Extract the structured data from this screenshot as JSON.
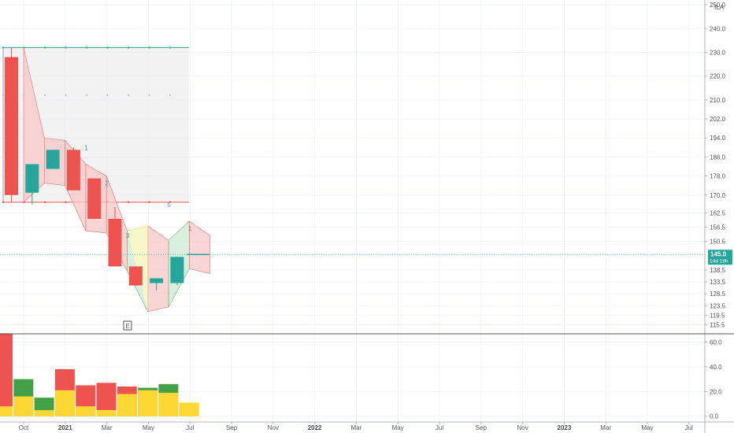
{
  "chart_data": {
    "type": "candlestick",
    "symbol_label": "ILA",
    "price_axis": {
      "ticks": [
        "250.0",
        "240.0",
        "230.0",
        "220.0",
        "210.0",
        "202.0",
        "194.0",
        "186.0",
        "178.0",
        "170.0",
        "162.5",
        "156.5",
        "150.5",
        "145.0",
        "138.5",
        "133.5",
        "128.5",
        "123.5",
        "119.5",
        "115.5"
      ],
      "ylim": [
        112,
        252
      ]
    },
    "volume_axis": {
      "ticks": [
        "60.0",
        "40.0",
        "20.0",
        "0.0"
      ],
      "ylim": [
        -4,
        66
      ]
    },
    "time_axis": [
      {
        "label": "Oct",
        "bold": false
      },
      {
        "label": "2021",
        "bold": true
      },
      {
        "label": "Mar",
        "bold": false
      },
      {
        "label": "May",
        "bold": false
      },
      {
        "label": "Jul",
        "bold": false
      },
      {
        "label": "Sep",
        "bold": false
      },
      {
        "label": "Nov",
        "bold": false
      },
      {
        "label": "2022",
        "bold": true
      },
      {
        "label": "Mar",
        "bold": false
      },
      {
        "label": "May",
        "bold": false
      },
      {
        "label": "Jul",
        "bold": false
      },
      {
        "label": "Sep",
        "bold": false
      },
      {
        "label": "Nov",
        "bold": false
      },
      {
        "label": "2023",
        "bold": true
      },
      {
        "label": "Mar",
        "bold": false
      },
      {
        "label": "May",
        "bold": false
      },
      {
        "label": "Jul",
        "bold": false
      }
    ],
    "candles": [
      {
        "open": 228,
        "high": 232,
        "low": 167,
        "close": 170
      },
      {
        "open": 171,
        "high": 183,
        "low": 166,
        "close": 183
      },
      {
        "open": 181,
        "high": 189,
        "low": 181,
        "close": 189
      },
      {
        "open": 189,
        "high": 190,
        "low": 172,
        "close": 172
      },
      {
        "open": 177,
        "high": 177,
        "low": 160,
        "close": 160
      },
      {
        "open": 160,
        "high": 165,
        "low": 140,
        "close": 140
      },
      {
        "open": 140,
        "high": 140,
        "low": 132,
        "close": 132
      },
      {
        "open": 133,
        "high": 135,
        "low": 130,
        "close": 135
      },
      {
        "open": 133,
        "high": 144,
        "low": 132,
        "close": 144
      },
      {
        "open": 145,
        "high": 145,
        "low": 145,
        "close": 145
      }
    ],
    "volume": [
      {
        "total": 67,
        "inner": 8,
        "color": "red"
      },
      {
        "total": 30,
        "inner": 16,
        "color": "green"
      },
      {
        "total": 15,
        "inner": 5,
        "color": "green"
      },
      {
        "total": 38,
        "inner": 21,
        "color": "red"
      },
      {
        "total": 25,
        "inner": 8,
        "color": "red"
      },
      {
        "total": 27,
        "inner": 5,
        "color": "red"
      },
      {
        "total": 24,
        "inner": 18,
        "color": "red"
      },
      {
        "total": 23,
        "inner": 21,
        "color": "green"
      },
      {
        "total": 26,
        "inner": 19,
        "color": "green"
      },
      {
        "total": 11,
        "inner": 11,
        "color": "yellow"
      }
    ],
    "current_price": {
      "value": "145.0",
      "countdown": "14d 19h",
      "y": 145
    },
    "earnings_marker": "E",
    "wave_labels": [
      {
        "text": "1",
        "bar": 4,
        "price": 189,
        "color": "#26a69a"
      },
      {
        "text": "2",
        "bar": 5,
        "price": 174,
        "color": "#26a69a"
      },
      {
        "text": "3",
        "bar": 6,
        "price": 152,
        "color": "#26a69a"
      },
      {
        "text": "5",
        "bar": 8,
        "price": 165,
        "color": "#26a69a"
      },
      {
        "text": "1",
        "bar": 9,
        "price": 155,
        "color": "#ef5350"
      }
    ],
    "range_box": {
      "top": 232,
      "bottom": 167
    },
    "upper_band": [
      232,
      194,
      193,
      183,
      178,
      155,
      157,
      151,
      159,
      153
    ],
    "lower_band": [
      167,
      175,
      174,
      155,
      154,
      138,
      121,
      123,
      139,
      137
    ]
  }
}
